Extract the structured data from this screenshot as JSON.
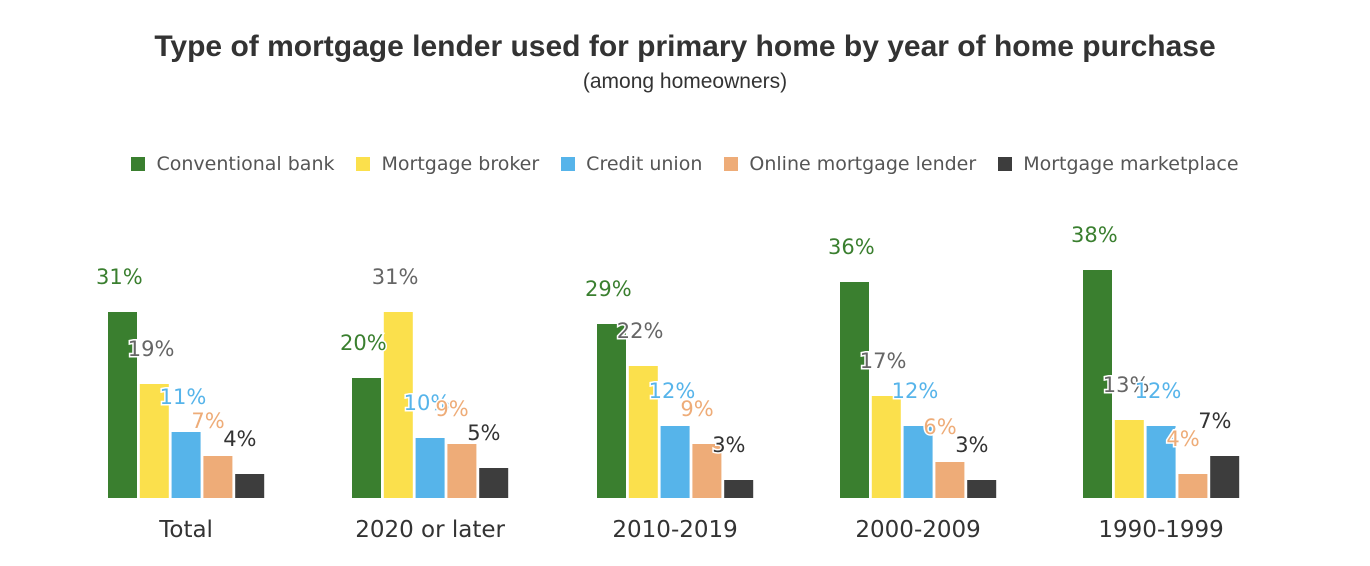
{
  "title": "Type of mortgage lender used for primary home by year of home purchase",
  "subtitle": "(among homeowners)",
  "colors": {
    "conventional_bank": "#3a7f2f",
    "mortgage_broker": "#fbe04c",
    "credit_union": "#56b4ea",
    "online_mortgage_lender": "#eeac78",
    "mortgage_marketplace": "#3d3d3d"
  },
  "chart_data": {
    "type": "bar",
    "title": "Type of mortgage lender used for primary home by year of home purchase",
    "subtitle": "(among homeowners)",
    "categories": [
      "Total",
      "2020 or later",
      "2010-2019",
      "2000-2009",
      "1990-1999"
    ],
    "series": [
      {
        "name": "Conventional bank",
        "values": [
          31,
          20,
          29,
          36,
          38
        ],
        "color": "#3a7f2f",
        "label_color": "#3a7f2f"
      },
      {
        "name": "Mortgage broker",
        "values": [
          19,
          31,
          22,
          17,
          13
        ],
        "color": "#fbe04c",
        "label_color": "#666666"
      },
      {
        "name": "Credit union",
        "values": [
          11,
          10,
          12,
          12,
          12
        ],
        "color": "#56b4ea",
        "label_color": "#56b4ea"
      },
      {
        "name": "Online mortgage lender",
        "values": [
          7,
          9,
          9,
          6,
          4
        ],
        "color": "#eeac78",
        "label_color": "#eeac78"
      },
      {
        "name": "Mortgage marketplace",
        "values": [
          4,
          5,
          3,
          3,
          7
        ],
        "color": "#3d3d3d",
        "label_color": "#333333"
      }
    ],
    "value_suffix": "%",
    "legend": "top",
    "grid": false,
    "ylim": [
      0,
      40
    ]
  }
}
